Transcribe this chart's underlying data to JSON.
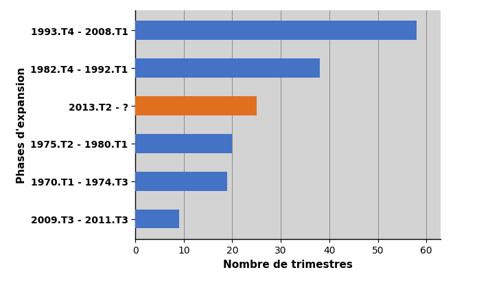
{
  "categories": [
    "1993.T4 - 2008.T1",
    "1982.T4 - 1992.T1",
    "2013.T2 - ?",
    "1975.T2 - 1980.T1",
    "1970.T1 - 1974.T3",
    "2009.T3 - 2011.T3"
  ],
  "values": [
    58,
    38,
    25,
    20,
    19,
    9
  ],
  "colors": [
    "#4472C4",
    "#4472C4",
    "#E07020",
    "#4472C4",
    "#4472C4",
    "#4472C4"
  ],
  "xlabel": "Nombre de trimestres",
  "ylabel": "Phases d'expansion",
  "xlim": [
    0,
    63
  ],
  "xticks": [
    0,
    10,
    20,
    30,
    40,
    50,
    60
  ],
  "background_color": "#D3D3D3",
  "bar_height": 0.5,
  "label_fontsize": 10,
  "axis_label_fontsize": 11,
  "tick_fontsize": 10,
  "fig_width": 7.3,
  "fig_height": 4.1
}
